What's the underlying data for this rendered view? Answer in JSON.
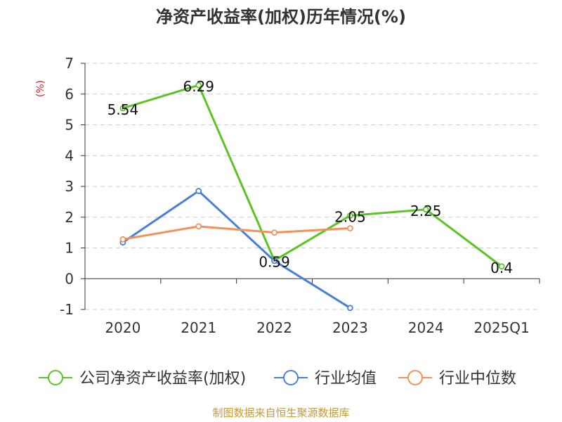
{
  "chart_data": {
    "type": "line",
    "title": "净资产收益率(加权)历年情况(%)",
    "ylabel": "(%)",
    "xlabel": "",
    "categories": [
      "2020",
      "2021",
      "2022",
      "2023",
      "2024",
      "2025Q1"
    ],
    "ylim": [
      -1,
      7
    ],
    "yticks": [
      -1,
      0,
      1,
      2,
      3,
      4,
      5,
      6,
      7
    ],
    "grid": true,
    "legend_position": "bottom",
    "series": [
      {
        "name": "公司净资产收益率(加权)",
        "color": "#5bc424",
        "values": [
          5.54,
          6.29,
          0.59,
          2.05,
          2.25,
          0.4
        ],
        "data_labels": [
          "5.54",
          "6.29",
          "0.59",
          "2.05",
          "2.25",
          "0.4"
        ]
      },
      {
        "name": "行业均值",
        "color": "#4a7fd6",
        "values": [
          1.18,
          2.85,
          0.58,
          -0.95,
          null,
          null
        ]
      },
      {
        "name": "行业中位数",
        "color": "#f39159",
        "values": [
          1.28,
          1.7,
          1.5,
          1.64,
          null,
          null
        ]
      }
    ]
  },
  "source_note": "制图数据来自恒生聚源数据库",
  "colors": {
    "title": "#333333",
    "ylabel": "#e02020",
    "source": "#c29a3a",
    "grid": "#cccccc",
    "axis": "#333333"
  }
}
